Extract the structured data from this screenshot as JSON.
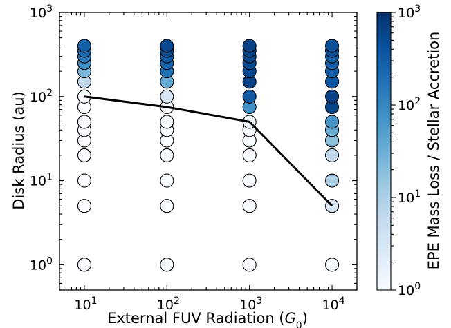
{
  "chart_data": {
    "type": "scatter",
    "title": "",
    "xlabel": "External FUV Radiation (",
    "xlabel_var": "G",
    "xlabel_sub": "0",
    "xlabel_close": ")",
    "ylabel": "Disk Radius (au)",
    "colorbar_label": "EPE Mass Loss / Stellar Accretion",
    "x_scale": "log",
    "y_scale": "log",
    "xlim": [
      5,
      20000
    ],
    "ylim": [
      0.5,
      1000
    ],
    "colorbar_lim": [
      1,
      1000
    ],
    "colormap": [
      "#f7fbff",
      "#deebf7",
      "#c6dbef",
      "#9ecae1",
      "#6baed6",
      "#4292c6",
      "#2171b5",
      "#08519c",
      "#08306b"
    ],
    "x_ticks": [
      {
        "base": "10",
        "exp": "1",
        "value": 10
      },
      {
        "base": "10",
        "exp": "2",
        "value": 100
      },
      {
        "base": "10",
        "exp": "3",
        "value": 1000
      },
      {
        "base": "10",
        "exp": "4",
        "value": 10000
      }
    ],
    "y_ticks": [
      {
        "base": "10",
        "exp": "0",
        "value": 1
      },
      {
        "base": "10",
        "exp": "1",
        "value": 10
      },
      {
        "base": "10",
        "exp": "2",
        "value": 100
      },
      {
        "base": "10",
        "exp": "3",
        "value": 1000
      }
    ],
    "colorbar_ticks": [
      {
        "base": "10",
        "exp": "0",
        "value": 1
      },
      {
        "base": "10",
        "exp": "1",
        "value": 10
      },
      {
        "base": "10",
        "exp": "2",
        "value": 100
      },
      {
        "base": "10",
        "exp": "3",
        "value": 1000
      }
    ],
    "series": [
      {
        "x": 10,
        "points": [
          {
            "r": 1,
            "c": 1
          },
          {
            "r": 5,
            "c": 1
          },
          {
            "r": 10,
            "c": 1
          },
          {
            "r": 20,
            "c": 1
          },
          {
            "r": 30,
            "c": 1
          },
          {
            "r": 40,
            "c": 1
          },
          {
            "r": 50,
            "c": 1
          },
          {
            "r": 75,
            "c": 1
          },
          {
            "r": 100,
            "c": 1
          },
          {
            "r": 150,
            "c": 6
          },
          {
            "r": 200,
            "c": 25
          },
          {
            "r": 250,
            "c": 80
          },
          {
            "r": 300,
            "c": 140
          },
          {
            "r": 350,
            "c": 200
          },
          {
            "r": 400,
            "c": 280
          }
        ]
      },
      {
        "x": 100,
        "points": [
          {
            "r": 1,
            "c": 1
          },
          {
            "r": 5,
            "c": 1
          },
          {
            "r": 10,
            "c": 1
          },
          {
            "r": 20,
            "c": 1
          },
          {
            "r": 30,
            "c": 1
          },
          {
            "r": 40,
            "c": 1
          },
          {
            "r": 50,
            "c": 1
          },
          {
            "r": 75,
            "c": 1
          },
          {
            "r": 100,
            "c": 3
          },
          {
            "r": 150,
            "c": 35
          },
          {
            "r": 200,
            "c": 180
          },
          {
            "r": 250,
            "c": 260
          },
          {
            "r": 300,
            "c": 350
          },
          {
            "r": 350,
            "c": 450
          },
          {
            "r": 400,
            "c": 550
          }
        ]
      },
      {
        "x": 1000,
        "points": [
          {
            "r": 1,
            "c": 1
          },
          {
            "r": 5,
            "c": 1
          },
          {
            "r": 10,
            "c": 1
          },
          {
            "r": 20,
            "c": 1
          },
          {
            "r": 30,
            "c": 1
          },
          {
            "r": 40,
            "c": 1
          },
          {
            "r": 50,
            "c": 1.2
          },
          {
            "r": 75,
            "c": 80
          },
          {
            "r": 100,
            "c": 350
          },
          {
            "r": 150,
            "c": 650
          },
          {
            "r": 200,
            "c": 500
          },
          {
            "r": 250,
            "c": 520
          },
          {
            "r": 300,
            "c": 560
          },
          {
            "r": 350,
            "c": 600
          },
          {
            "r": 400,
            "c": 650
          }
        ]
      },
      {
        "x": 10000,
        "points": [
          {
            "r": 1,
            "c": 1
          },
          {
            "r": 5,
            "c": 3
          },
          {
            "r": 10,
            "c": 10
          },
          {
            "r": 20,
            "c": 6
          },
          {
            "r": 30,
            "c": 18
          },
          {
            "r": 40,
            "c": 35
          },
          {
            "r": 50,
            "c": 70
          },
          {
            "r": 75,
            "c": 600
          },
          {
            "r": 100,
            "c": 650
          },
          {
            "r": 150,
            "c": 400
          },
          {
            "r": 200,
            "c": 300
          },
          {
            "r": 250,
            "c": 280
          },
          {
            "r": 300,
            "c": 320
          },
          {
            "r": 350,
            "c": 400
          },
          {
            "r": 400,
            "c": 450
          }
        ]
      }
    ],
    "line": {
      "x": [
        10,
        100,
        1000,
        10000
      ],
      "y": [
        100,
        75,
        50,
        5
      ]
    }
  }
}
